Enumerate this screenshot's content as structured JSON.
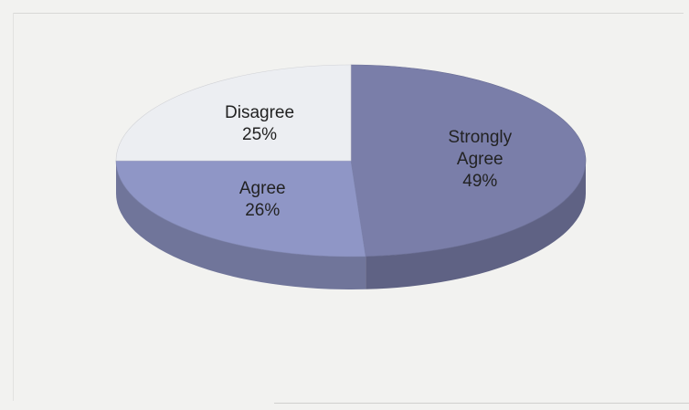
{
  "chart_data": {
    "type": "pie",
    "three_d": true,
    "slices": [
      {
        "category": "Strongly Agree",
        "label_lines": [
          "Strongly",
          "Agree"
        ],
        "value": 49,
        "value_label": "49%",
        "color": "#7a7ea9"
      },
      {
        "category": "Agree",
        "label_lines": [
          "Agree"
        ],
        "value": 26,
        "value_label": "26%",
        "color": "#8f96c6"
      },
      {
        "category": "Disagree",
        "label_lines": [
          "Disagree"
        ],
        "value": 25,
        "value_label": "25%",
        "color": "#eceef2"
      }
    ],
    "legend": "none"
  }
}
